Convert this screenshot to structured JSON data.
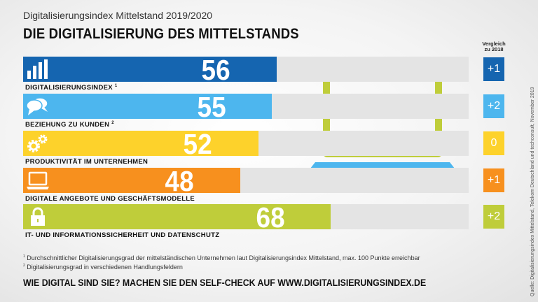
{
  "header": {
    "subtitle": "Digitalisierungsindex Mittelstand 2019/2020",
    "title": "DIE DIGITALISIERUNG DES MITTELSTANDS"
  },
  "comparison_header": "Vergleich zu 2018",
  "chart_data": {
    "type": "bar",
    "orientation": "horizontal",
    "xlim": [
      0,
      100
    ],
    "categories": [
      "DIGITALISIERUNGSINDEX",
      "BEZIEHUNG ZU KUNDEN",
      "PRODUKTIVITÄT IM UNTERNEHMEN",
      "DIGITALE ANGEBOTE UND GESCHÄFTSMODELLE",
      "IT- UND INFORMATIONSSICHERHEIT UND DATENSCHUTZ"
    ],
    "footnote_marks": [
      "1",
      "2",
      "",
      "",
      ""
    ],
    "values": [
      56,
      55,
      52,
      48,
      68
    ],
    "change_vs_2018": [
      "+1",
      "+2",
      "0",
      "+1",
      "+2"
    ],
    "colors": [
      "#1565b0",
      "#4db6ee",
      "#fdd22b",
      "#f7901e",
      "#bfcd3a"
    ],
    "icons": [
      "bar-chart-icon",
      "speech-bubbles-icon",
      "gears-icon",
      "laptop-icon",
      "padlock-icon"
    ]
  },
  "footnotes": [
    "Durchschnittlicher Digitalisierungsgrad der mittelständischen Unternehmen laut Digitalisierungsindex Mittelstand, max. 100 Punkte erreichbar",
    "Digitalisierungsgrad in verschiedenen Handlungsfeldern"
  ],
  "footnote_numbers": [
    "1",
    "2"
  ],
  "cta": "WIE DIGITAL SIND SIE? MACHEN SIE DEN SELF-CHECK AUF WWW.DIGITALISIERUNGSINDEX.DE",
  "source": "Quelle: Digitalisierungsindex Mittelstand, Telekom Deutschland und techconsult, November 2019"
}
